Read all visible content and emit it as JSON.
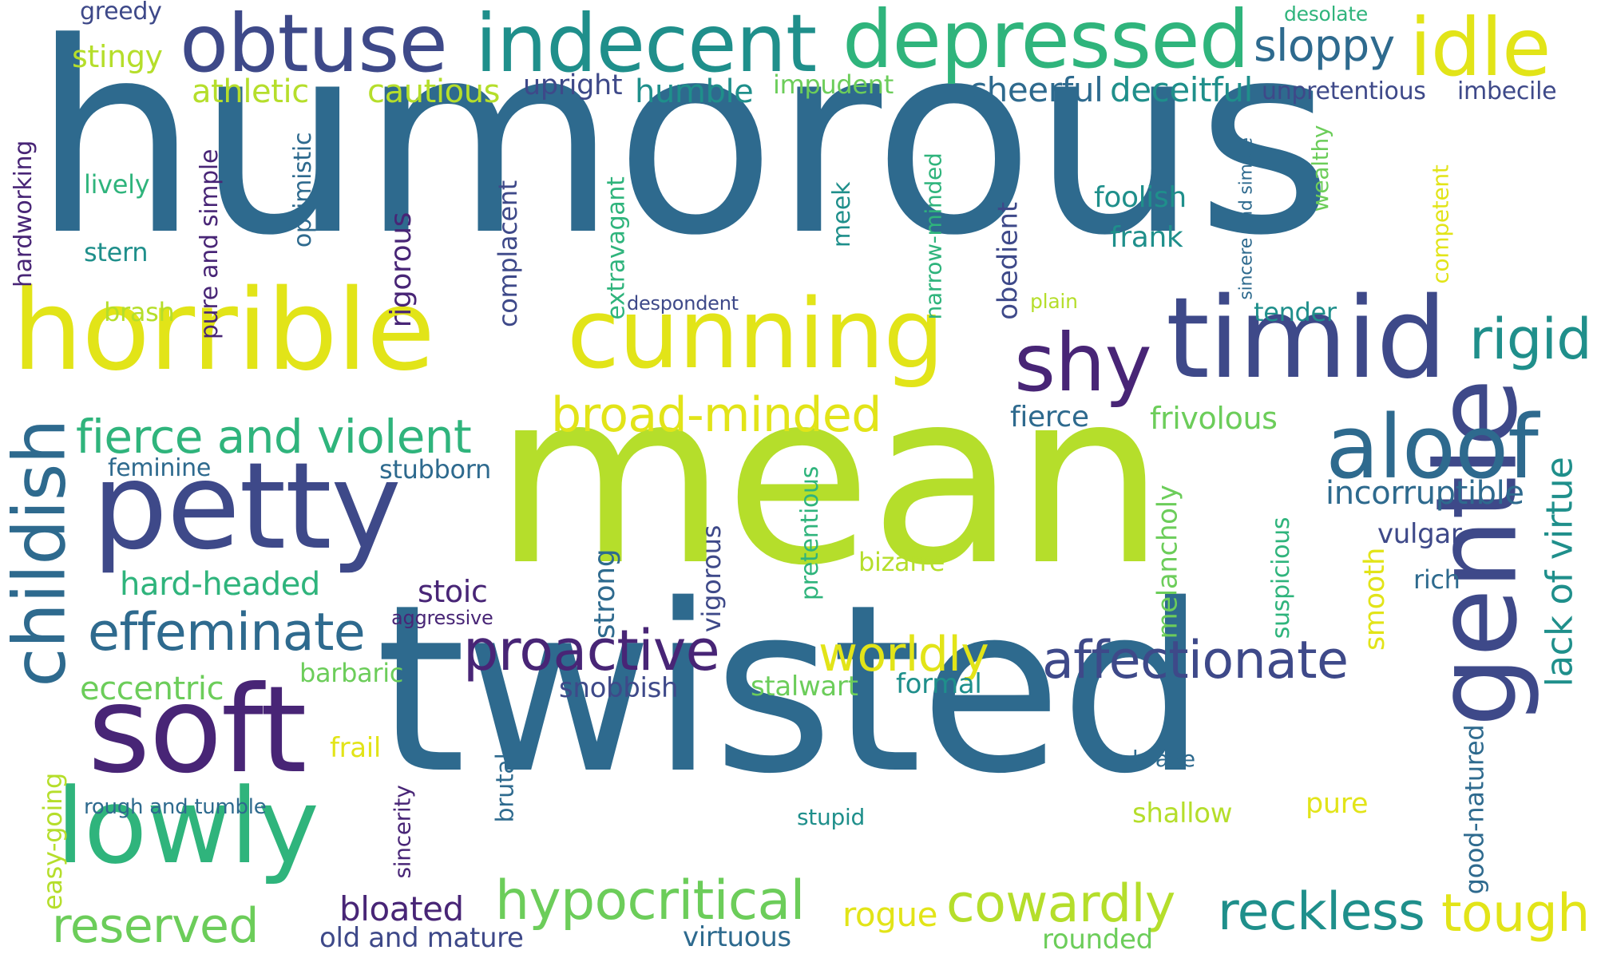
{
  "palette": {
    "dark_purple": "#482576",
    "indigo": "#3e4989",
    "blue": "#2e6a8e",
    "teal": "#1f8f8b",
    "green": "#2fb47c",
    "lightgreen": "#6ccd5a",
    "lime": "#b5de2b",
    "yellow": "#e2e418"
  },
  "words": [
    {
      "text": "humorous",
      "color": "#2e6a8e"
    },
    {
      "text": "mean",
      "color": "#b5de2b"
    },
    {
      "text": "twisted",
      "color": "#2e6a8e"
    },
    {
      "text": "horrible",
      "color": "#e2e418"
    },
    {
      "text": "cunning",
      "color": "#e2e418"
    },
    {
      "text": "timid",
      "color": "#3e4989"
    },
    {
      "text": "shy",
      "color": "#482576"
    },
    {
      "text": "petty",
      "color": "#3e4989"
    },
    {
      "text": "soft",
      "color": "#482576"
    },
    {
      "text": "lowly",
      "color": "#2fb47c"
    },
    {
      "text": "gentle",
      "color": "#3e4989"
    },
    {
      "text": "childish",
      "color": "#2e6a8e"
    },
    {
      "text": "obtuse",
      "color": "#3e4989"
    },
    {
      "text": "indecent",
      "color": "#1f8f8b"
    },
    {
      "text": "depressed",
      "color": "#2fb47c"
    },
    {
      "text": "idle",
      "color": "#e2e418"
    },
    {
      "text": "sloppy",
      "color": "#2e6a8e"
    },
    {
      "text": "aloof",
      "color": "#2e6a8e"
    },
    {
      "text": "rigid",
      "color": "#1f8f8b"
    },
    {
      "text": "effeminate",
      "color": "#2e6a8e"
    },
    {
      "text": "proactive",
      "color": "#482576"
    },
    {
      "text": "affectionate",
      "color": "#3e4989"
    },
    {
      "text": "hypocritical",
      "color": "#6ccd5a"
    },
    {
      "text": "cowardly",
      "color": "#b5de2b"
    },
    {
      "text": "reckless",
      "color": "#1f8f8b"
    },
    {
      "text": "tough",
      "color": "#e2e418"
    },
    {
      "text": "reserved",
      "color": "#6ccd5a"
    },
    {
      "text": "fierce and violent",
      "color": "#2fb47c"
    },
    {
      "text": "broad-minded",
      "color": "#e2e418"
    },
    {
      "text": "worldly",
      "color": "#e2e418"
    },
    {
      "text": "lack of virtue",
      "color": "#1f8f8b"
    },
    {
      "text": "greedy",
      "color": "#3e4989"
    },
    {
      "text": "stingy",
      "color": "#b5de2b"
    },
    {
      "text": "athletic",
      "color": "#b5de2b"
    },
    {
      "text": "cautious",
      "color": "#b5de2b"
    },
    {
      "text": "upright",
      "color": "#3e4989"
    },
    {
      "text": "humble",
      "color": "#1f8f8b"
    },
    {
      "text": "impudent",
      "color": "#6ccd5a"
    },
    {
      "text": "cheerful",
      "color": "#2e6a8e"
    },
    {
      "text": "deceitful",
      "color": "#1f8f8b"
    },
    {
      "text": "desolate",
      "color": "#2fb47c"
    },
    {
      "text": "unpretentious",
      "color": "#3e4989"
    },
    {
      "text": "imbecile",
      "color": "#3e4989"
    },
    {
      "text": "hardworking",
      "color": "#482576"
    },
    {
      "text": "lively",
      "color": "#2fb47c"
    },
    {
      "text": "stern",
      "color": "#1f8f8b"
    },
    {
      "text": "brash",
      "color": "#b5de2b"
    },
    {
      "text": "pure and simple",
      "color": "#482576"
    },
    {
      "text": "optimistic",
      "color": "#2e6a8e"
    },
    {
      "text": "rigorous",
      "color": "#482576"
    },
    {
      "text": "complacent",
      "color": "#3e4989"
    },
    {
      "text": "extravagant",
      "color": "#2fb47c"
    },
    {
      "text": "despondent",
      "color": "#3e4989"
    },
    {
      "text": "meek",
      "color": "#1f8f8b"
    },
    {
      "text": "narrow-minded",
      "color": "#2fb47c"
    },
    {
      "text": "obedient",
      "color": "#3e4989"
    },
    {
      "text": "plain",
      "color": "#b5de2b"
    },
    {
      "text": "foolish",
      "color": "#1f8f8b"
    },
    {
      "text": "frank",
      "color": "#1f8f8b"
    },
    {
      "text": "sincere and simple",
      "color": "#2e6a8e"
    },
    {
      "text": "wealthy",
      "color": "#6ccd5a"
    },
    {
      "text": "competent",
      "color": "#e2e418"
    },
    {
      "text": "tender",
      "color": "#1f8f8b"
    },
    {
      "text": "fierce",
      "color": "#2e6a8e"
    },
    {
      "text": "frivolous",
      "color": "#6ccd5a"
    },
    {
      "text": "incorruptible",
      "color": "#2e6a8e"
    },
    {
      "text": "vulgar",
      "color": "#3e4989"
    },
    {
      "text": "rich",
      "color": "#2e6a8e"
    },
    {
      "text": "smooth",
      "color": "#e2e418"
    },
    {
      "text": "feminine",
      "color": "#2e6a8e"
    },
    {
      "text": "stubborn",
      "color": "#2e6a8e"
    },
    {
      "text": "hard-headed",
      "color": "#2fb47c"
    },
    {
      "text": "stoic",
      "color": "#482576"
    },
    {
      "text": "aggressive",
      "color": "#482576"
    },
    {
      "text": "barbaric",
      "color": "#6ccd5a"
    },
    {
      "text": "eccentric",
      "color": "#6ccd5a"
    },
    {
      "text": "frail",
      "color": "#e2e418"
    },
    {
      "text": "rough and tumble",
      "color": "#2e6a8e"
    },
    {
      "text": "easy-going",
      "color": "#b5de2b"
    },
    {
      "text": "sincerity",
      "color": "#482576"
    },
    {
      "text": "brutal",
      "color": "#2e6a8e"
    },
    {
      "text": "strong",
      "color": "#2e6a8e"
    },
    {
      "text": "vigorous",
      "color": "#3e4989"
    },
    {
      "text": "pretentious",
      "color": "#2fb47c"
    },
    {
      "text": "bizarre",
      "color": "#b5de2b"
    },
    {
      "text": "melancholy",
      "color": "#6ccd5a"
    },
    {
      "text": "suspicious",
      "color": "#2fb47c"
    },
    {
      "text": "snobbish",
      "color": "#3e4989"
    },
    {
      "text": "stalwart",
      "color": "#6ccd5a"
    },
    {
      "text": "formal",
      "color": "#1f8f8b"
    },
    {
      "text": "good-natured",
      "color": "#2e6a8e"
    },
    {
      "text": "brave",
      "color": "#2e6a8e"
    },
    {
      "text": "stupid",
      "color": "#1f8f8b"
    },
    {
      "text": "shallow",
      "color": "#b5de2b"
    },
    {
      "text": "pure",
      "color": "#e2e418"
    },
    {
      "text": "bloated",
      "color": "#482576"
    },
    {
      "text": "old and mature",
      "color": "#3e4989"
    },
    {
      "text": "virtuous",
      "color": "#2e6a8e"
    },
    {
      "text": "rogue",
      "color": "#e2e418"
    },
    {
      "text": "rounded",
      "color": "#6ccd5a"
    }
  ]
}
